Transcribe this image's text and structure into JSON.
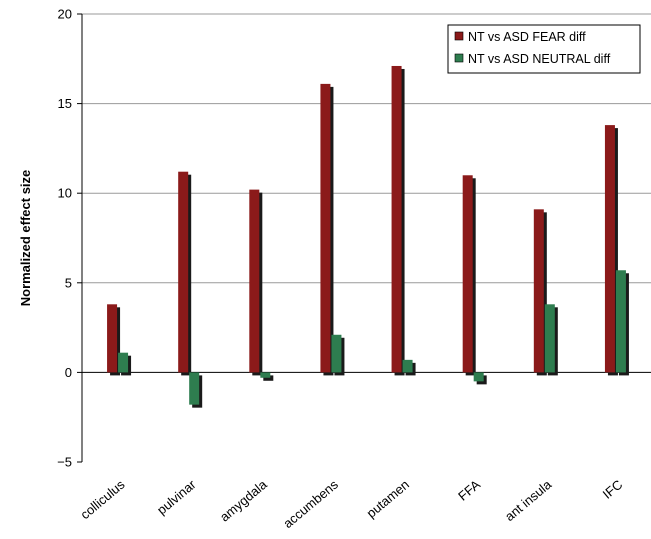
{
  "chart_data": {
    "type": "bar",
    "title": "",
    "xlabel": "",
    "ylabel": "Normalized effect size",
    "ylim": [
      -5,
      20
    ],
    "yticks": [
      -5,
      0,
      5,
      10,
      15,
      20
    ],
    "grid": true,
    "legend_position": "top-right",
    "categories": [
      "colliculus",
      "pulvinar",
      "amygdala",
      "accumbens",
      "putamen",
      "FFA",
      "ant insula",
      "IFC"
    ],
    "series": [
      {
        "name": "NT vs ASD FEAR diff",
        "color": "#8b1a1a",
        "values": [
          3.8,
          11.2,
          10.2,
          16.1,
          17.1,
          11.0,
          9.1,
          13.8
        ]
      },
      {
        "name": "NT vs ASD NEUTRAL diff",
        "color": "#2e7d4f",
        "values": [
          1.1,
          -1.8,
          -0.3,
          2.1,
          0.7,
          -0.5,
          3.8,
          5.7
        ]
      }
    ]
  }
}
